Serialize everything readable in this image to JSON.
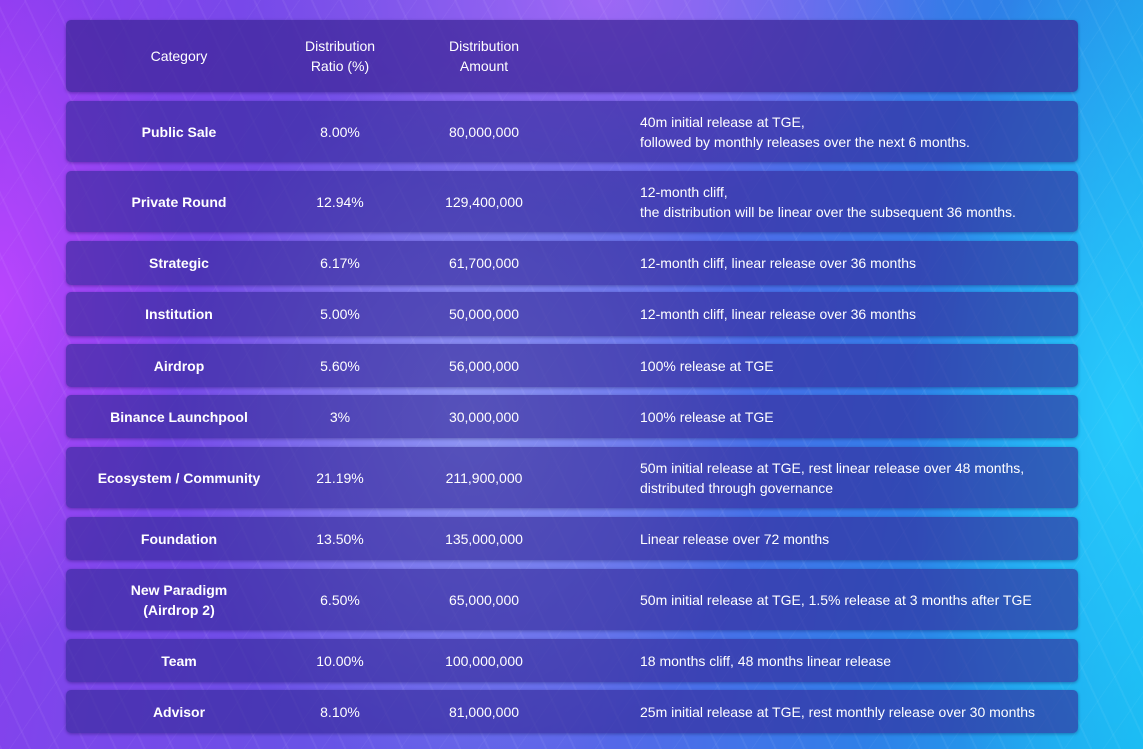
{
  "table": {
    "headers": {
      "category": "Category",
      "ratio": "Distribution\nRatio (%)",
      "amount": "Distribution\nAmount",
      "release": ""
    },
    "rows": [
      {
        "category": "Public Sale",
        "ratio": "8.00%",
        "amount": "80,000,000",
        "release": "40m initial release at TGE,\nfollowed by monthly releases over the next 6 months."
      },
      {
        "category": "Private Round",
        "ratio": "12.94%",
        "amount": "129,400,000",
        "release": "12-month cliff,\nthe distribution will be linear over the subsequent 36 months."
      },
      {
        "category": "Strategic",
        "ratio": "6.17%",
        "amount": "61,700,000",
        "release": "12-month cliff, linear release over 36 months"
      },
      {
        "category": "Institution",
        "ratio": "5.00%",
        "amount": "50,000,000",
        "release": "12-month cliff, linear release over 36 months"
      },
      {
        "category": "Airdrop",
        "ratio": "5.60%",
        "amount": "56,000,000",
        "release": "100% release at TGE"
      },
      {
        "category": "Binance Launchpool",
        "ratio": "3%",
        "amount": "30,000,000",
        "release": "100% release at TGE"
      },
      {
        "category": "Ecosystem / Community",
        "ratio": "21.19%",
        "amount": "211,900,000",
        "release": "50m initial release at TGE, rest linear release over 48 months,\ndistributed through governance"
      },
      {
        "category": "Foundation",
        "ratio": "13.50%",
        "amount": "135,000,000",
        "release": "Linear release over 72 months"
      },
      {
        "category": "New Paradigm\n(Airdrop 2)",
        "ratio": "6.50%",
        "amount": "65,000,000",
        "release": "50m initial release at TGE, 1.5% release at 3 months after TGE"
      },
      {
        "category": "Team",
        "ratio": "10.00%",
        "amount": "100,000,000",
        "release": "18 months cliff, 48 months linear release"
      },
      {
        "category": "Advisor",
        "ratio": "8.10%",
        "amount": "81,000,000",
        "release": "25m initial release at TGE, rest monthly release over 30 months"
      }
    ]
  },
  "colors": {
    "row_background": "#34289a",
    "text": "#ffffff",
    "background_left": "#8d3df0",
    "background_right": "#16b4ef"
  }
}
